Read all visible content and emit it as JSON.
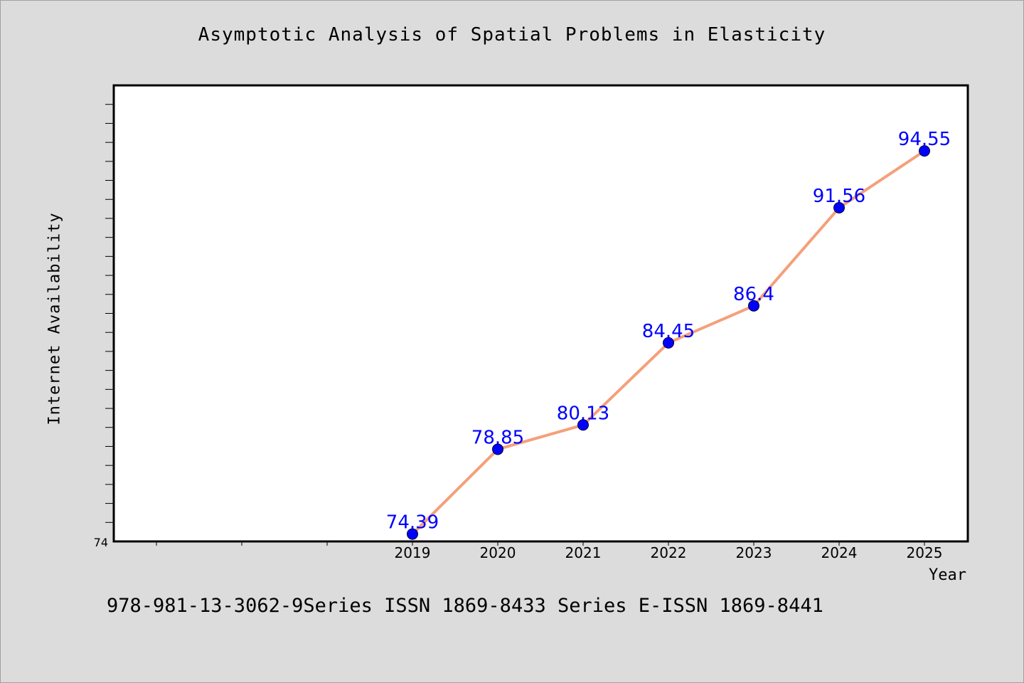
{
  "chart_data": {
    "type": "line",
    "title": "Asymptotic Analysis of Spatial Problems in Elasticity",
    "xlabel": "Year",
    "ylabel": "Internet Availability",
    "x": [
      "2019",
      "2020",
      "2021",
      "2022",
      "2023",
      "2024",
      "2025"
    ],
    "series": [
      {
        "values": [
          74.39,
          78.85,
          80.13,
          84.45,
          86.4,
          91.56,
          94.55
        ]
      }
    ],
    "data_labels": [
      "74.39",
      "78.85",
      "80.13",
      "84.45",
      "86.4",
      "91.56",
      "94.55"
    ],
    "ylim": [
      74,
      98
    ],
    "y_tick_labels": [
      "74"
    ],
    "grid": false,
    "colors": {
      "line": "#f4a07a",
      "marker": "#0000ff",
      "label": "#0000ff",
      "background": "#dcdcdc",
      "plot_area": "#ffffff"
    }
  },
  "footer_note": "978-981-13-3062-9Series ISSN 1869-8433 Series E-ISSN 1869-8441"
}
